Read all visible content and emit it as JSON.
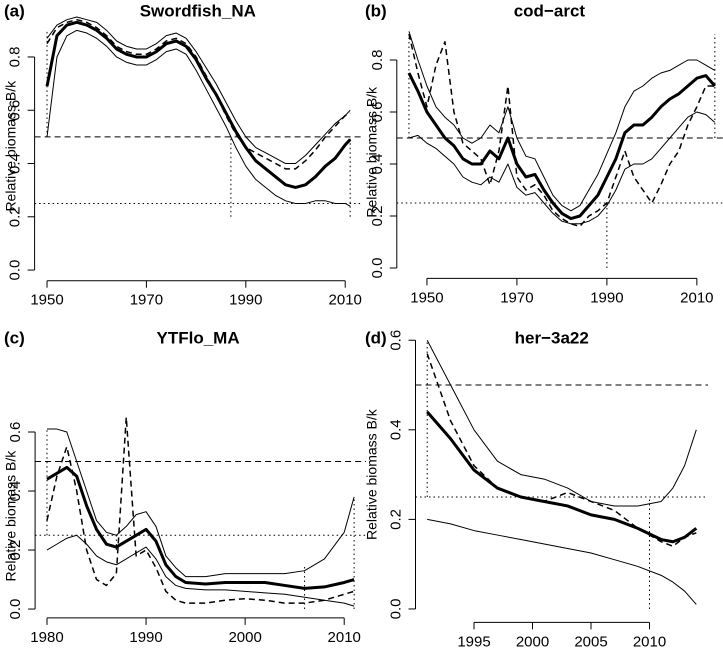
{
  "chart_data": [
    {
      "type": "line",
      "panel_label": "(a)",
      "title": "Swordfish_NA",
      "ylabel": "Relative biomass B/k",
      "xlim": [
        1947.5,
        2013.5
      ],
      "ylim": [
        -0.04,
        0.97
      ],
      "xticks": [
        1950,
        1970,
        1990,
        2010
      ],
      "yticks": [
        {
          "value": 0,
          "label": "0.0"
        },
        0.2,
        0.4,
        0.6,
        0.8
      ],
      "x": [
        1950,
        1952,
        1954,
        1956,
        1958,
        1960,
        1962,
        1964,
        1966,
        1968,
        1970,
        1972,
        1974,
        1976,
        1978,
        1980,
        1982,
        1984,
        1986,
        1988,
        1990,
        1992,
        1994,
        1996,
        1998,
        2000,
        2002,
        2004,
        2006,
        2008,
        2010,
        2011
      ],
      "series": [
        {
          "color": "#000000",
          "width": 3,
          "dash": "solid",
          "values": [
            0.69,
            0.88,
            0.92,
            0.93,
            0.92,
            0.9,
            0.87,
            0.83,
            0.81,
            0.8,
            0.8,
            0.82,
            0.85,
            0.86,
            0.84,
            0.79,
            0.72,
            0.66,
            0.59,
            0.52,
            0.46,
            0.41,
            0.38,
            0.35,
            0.32,
            0.31,
            0.32,
            0.35,
            0.39,
            0.42,
            0.47,
            0.49
          ]
        },
        {
          "color": "#000000",
          "width": 1,
          "dash": "solid",
          "values": [
            0.87,
            0.92,
            0.94,
            0.95,
            0.94,
            0.93,
            0.9,
            0.86,
            0.84,
            0.83,
            0.83,
            0.85,
            0.88,
            0.89,
            0.87,
            0.82,
            0.76,
            0.7,
            0.63,
            0.56,
            0.5,
            0.46,
            0.44,
            0.42,
            0.4,
            0.4,
            0.43,
            0.47,
            0.51,
            0.55,
            0.58,
            0.6
          ]
        },
        {
          "color": "#000000",
          "width": 1,
          "dash": "solid",
          "values": [
            0.5,
            0.8,
            0.88,
            0.9,
            0.89,
            0.87,
            0.84,
            0.8,
            0.78,
            0.77,
            0.77,
            0.79,
            0.82,
            0.83,
            0.81,
            0.75,
            0.68,
            0.61,
            0.54,
            0.46,
            0.39,
            0.34,
            0.31,
            0.28,
            0.26,
            0.25,
            0.25,
            0.26,
            0.26,
            0.25,
            0.25,
            0.24
          ]
        },
        {
          "color": "#000000",
          "width": 1.5,
          "dash": "dashed",
          "values": [
            0.85,
            0.91,
            0.93,
            0.94,
            0.93,
            0.91,
            0.88,
            0.84,
            0.82,
            0.81,
            0.81,
            0.83,
            0.86,
            0.87,
            0.85,
            0.8,
            0.73,
            0.66,
            0.58,
            0.51,
            0.46,
            0.44,
            0.42,
            0.4,
            0.38,
            0.38,
            0.41,
            0.45,
            0.5,
            0.54,
            0.58,
            0.59
          ]
        }
      ],
      "hlines": [
        {
          "value": 0.5,
          "dash": "dashed"
        },
        {
          "value": 0.25,
          "dash": "dotted"
        }
      ],
      "vlines": [
        {
          "x": 1950,
          "y": [
            0.5,
            0.9
          ]
        },
        {
          "x": 1987,
          "y": [
            0.2,
            0.5
          ]
        },
        {
          "x": 2011,
          "y": [
            0.2,
            0.5
          ]
        }
      ]
    },
    {
      "type": "line",
      "panel_label": "(b)",
      "title": "cod−arct",
      "ylabel": "Relative biomass B/k",
      "xlim": [
        1943.3,
        2016.7
      ],
      "ylim": [
        -0.04,
        0.93
      ],
      "xticks": [
        1950,
        1970,
        1990,
        2010
      ],
      "yticks": [
        {
          "value": 0,
          "label": "0.0"
        },
        0.2,
        0.4,
        0.6,
        0.8
      ],
      "x": [
        1946,
        1948,
        1950,
        1952,
        1954,
        1956,
        1958,
        1960,
        1962,
        1964,
        1966,
        1968,
        1970,
        1972,
        1974,
        1976,
        1978,
        1980,
        1982,
        1984,
        1986,
        1988,
        1990,
        1992,
        1994,
        1996,
        1998,
        2000,
        2002,
        2004,
        2006,
        2008,
        2010,
        2012,
        2014
      ],
      "series": [
        {
          "color": "#000000",
          "width": 3,
          "dash": "solid",
          "values": [
            0.75,
            0.68,
            0.6,
            0.55,
            0.5,
            0.47,
            0.42,
            0.4,
            0.4,
            0.45,
            0.42,
            0.5,
            0.4,
            0.35,
            0.36,
            0.3,
            0.25,
            0.21,
            0.19,
            0.2,
            0.24,
            0.28,
            0.35,
            0.42,
            0.52,
            0.55,
            0.55,
            0.58,
            0.62,
            0.65,
            0.67,
            0.7,
            0.73,
            0.74,
            0.7
          ]
        },
        {
          "color": "#000000",
          "width": 1,
          "dash": "solid",
          "values": [
            0.91,
            0.8,
            0.7,
            0.62,
            0.58,
            0.55,
            0.5,
            0.48,
            0.5,
            0.55,
            0.52,
            0.62,
            0.5,
            0.43,
            0.42,
            0.35,
            0.28,
            0.24,
            0.22,
            0.24,
            0.3,
            0.36,
            0.44,
            0.52,
            0.62,
            0.68,
            0.7,
            0.73,
            0.75,
            0.76,
            0.78,
            0.8,
            0.8,
            0.78,
            0.76
          ]
        },
        {
          "color": "#000000",
          "width": 1,
          "dash": "solid",
          "values": [
            0.5,
            0.51,
            0.48,
            0.46,
            0.43,
            0.4,
            0.35,
            0.33,
            0.32,
            0.35,
            0.33,
            0.4,
            0.31,
            0.28,
            0.29,
            0.25,
            0.21,
            0.18,
            0.17,
            0.17,
            0.18,
            0.2,
            0.24,
            0.3,
            0.38,
            0.4,
            0.4,
            0.42,
            0.46,
            0.5,
            0.54,
            0.58,
            0.6,
            0.59,
            0.56
          ]
        },
        {
          "color": "#000000",
          "width": 1.5,
          "dash": "dashed",
          "values": [
            0.9,
            0.75,
            0.62,
            0.78,
            0.87,
            0.6,
            0.48,
            0.45,
            0.42,
            0.32,
            0.45,
            0.7,
            0.35,
            0.3,
            0.32,
            0.28,
            0.22,
            0.19,
            0.17,
            0.16,
            0.2,
            0.22,
            0.25,
            0.35,
            0.45,
            0.35,
            0.3,
            0.25,
            0.32,
            0.4,
            0.45,
            0.55,
            0.62,
            0.7,
            0.7
          ]
        }
      ],
      "hlines": [
        {
          "value": 0.5,
          "dash": "dashed"
        },
        {
          "value": 0.25,
          "dash": "dotted"
        }
      ],
      "vlines": [
        {
          "x": 1946,
          "y": [
            0.5,
            0.9
          ]
        },
        {
          "x": 1990,
          "y": [
            0,
            0.25
          ]
        },
        {
          "x": 2014,
          "y": [
            0.5,
            0.9
          ]
        }
      ]
    },
    {
      "type": "line",
      "panel_label": "(c)",
      "title": "YTFlo_MA",
      "ylabel": "Relative biomass B/k",
      "xlim": [
        1978.8,
        2012.2
      ],
      "ylim": [
        -0.03,
        0.66
      ],
      "xticks": [
        1980,
        1990,
        2000,
        2010
      ],
      "yticks": [
        {
          "value": 0,
          "label": "0.0"
        },
        0.2,
        0.4,
        0.6
      ],
      "x": [
        1980,
        1981,
        1982,
        1983,
        1984,
        1985,
        1986,
        1987,
        1988,
        1989,
        1990,
        1991,
        1992,
        1993,
        1994,
        1996,
        1998,
        2000,
        2002,
        2004,
        2006,
        2008,
        2010,
        2011
      ],
      "series": [
        {
          "color": "#000000",
          "width": 3,
          "dash": "solid",
          "values": [
            0.44,
            0.46,
            0.48,
            0.45,
            0.35,
            0.27,
            0.22,
            0.21,
            0.23,
            0.25,
            0.27,
            0.23,
            0.15,
            0.11,
            0.09,
            0.085,
            0.09,
            0.09,
            0.09,
            0.08,
            0.07,
            0.075,
            0.09,
            0.1
          ]
        },
        {
          "color": "#000000",
          "width": 1,
          "dash": "solid",
          "values": [
            0.61,
            0.61,
            0.6,
            0.5,
            0.4,
            0.3,
            0.26,
            0.25,
            0.28,
            0.32,
            0.33,
            0.28,
            0.18,
            0.14,
            0.11,
            0.11,
            0.12,
            0.12,
            0.12,
            0.12,
            0.13,
            0.17,
            0.26,
            0.38
          ]
        },
        {
          "color": "#000000",
          "width": 1,
          "dash": "solid",
          "values": [
            0.2,
            0.22,
            0.24,
            0.25,
            0.22,
            0.18,
            0.16,
            0.15,
            0.17,
            0.19,
            0.21,
            0.17,
            0.11,
            0.08,
            0.07,
            0.065,
            0.065,
            0.06,
            0.055,
            0.05,
            0.04,
            0.03,
            0.02,
            0.01
          ]
        },
        {
          "color": "#000000",
          "width": 1.5,
          "dash": "dashed",
          "values": [
            0.3,
            0.45,
            0.55,
            0.4,
            0.2,
            0.1,
            0.08,
            0.12,
            0.65,
            0.18,
            0.2,
            0.14,
            0.06,
            0.03,
            0.02,
            0.02,
            0.03,
            0.035,
            0.03,
            0.02,
            0.02,
            0.03,
            0.05,
            0.06
          ]
        }
      ],
      "hlines": [
        {
          "value": 0.5,
          "dash": "dashed"
        },
        {
          "value": 0.25,
          "dash": "dotted"
        }
      ],
      "vlines": [
        {
          "x": 1980,
          "y": [
            0.25,
            0.61
          ]
        },
        {
          "x": 1987,
          "y": [
            0.2,
            0.25
          ]
        },
        {
          "x": 2006,
          "y": [
            0,
            0.15
          ]
        },
        {
          "x": 2011,
          "y": [
            0,
            0.38
          ]
        }
      ]
    },
    {
      "type": "line",
      "panel_label": "(d)",
      "title": "her−3a22",
      "ylabel": "Relative biomass B/k",
      "xlim": [
        1990,
        2015
      ],
      "ylim": [
        -0.03,
        0.63
      ],
      "xticks": [
        1995,
        2000,
        2005,
        2010
      ],
      "yticks": [
        {
          "value": 0,
          "label": "0.0"
        },
        0.2,
        0.4,
        0.6
      ],
      "x": [
        1991,
        1993,
        1995,
        1997,
        1999,
        2001,
        2003,
        2005,
        2007,
        2009,
        2011,
        2012,
        2013,
        2014
      ],
      "series": [
        {
          "color": "#000000",
          "width": 3,
          "dash": "solid",
          "values": [
            0.44,
            0.38,
            0.31,
            0.27,
            0.25,
            0.24,
            0.23,
            0.21,
            0.2,
            0.18,
            0.155,
            0.15,
            0.16,
            0.18
          ]
        },
        {
          "color": "#000000",
          "width": 1,
          "dash": "solid",
          "values": [
            0.6,
            0.5,
            0.4,
            0.33,
            0.3,
            0.29,
            0.27,
            0.24,
            0.23,
            0.23,
            0.24,
            0.27,
            0.32,
            0.4
          ]
        },
        {
          "color": "#000000",
          "width": 1,
          "dash": "solid",
          "values": [
            0.2,
            0.19,
            0.175,
            0.165,
            0.155,
            0.145,
            0.135,
            0.125,
            0.11,
            0.095,
            0.075,
            0.06,
            0.04,
            0.01
          ]
        },
        {
          "color": "#000000",
          "width": 1.5,
          "dash": "dashed",
          "values": [
            0.57,
            0.42,
            0.32,
            0.27,
            0.25,
            0.24,
            0.26,
            0.24,
            0.22,
            0.18,
            0.15,
            0.14,
            0.16,
            0.17
          ]
        }
      ],
      "hlines": [
        {
          "value": 0.5,
          "dash": "dashed"
        },
        {
          "value": 0.25,
          "dash": "dotted"
        }
      ],
      "vlines": [
        {
          "x": 1991,
          "y": [
            0.25,
            0.6
          ]
        },
        {
          "x": 2010,
          "y": [
            0,
            0.25
          ]
        }
      ]
    }
  ]
}
